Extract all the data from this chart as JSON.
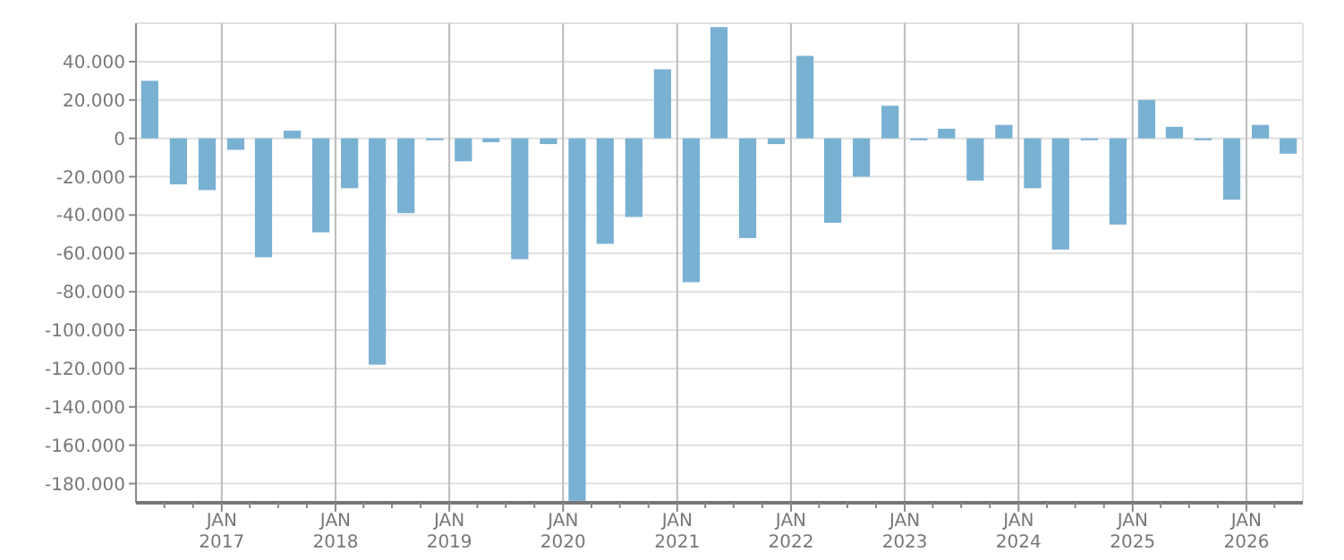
{
  "chart_data": {
    "type": "bar",
    "x": [
      "2016-05-15",
      "2016-08-15",
      "2016-11-15",
      "2017-02-15",
      "2017-05-15",
      "2017-08-15",
      "2017-11-15",
      "2018-02-15",
      "2018-05-15",
      "2018-08-15",
      "2018-11-15",
      "2019-02-15",
      "2019-05-15",
      "2019-08-15",
      "2019-11-15",
      "2020-02-15",
      "2020-05-15",
      "2020-08-15",
      "2020-11-15",
      "2021-02-15",
      "2021-05-15",
      "2021-08-15",
      "2021-11-15",
      "2022-02-15",
      "2022-05-15",
      "2022-08-15",
      "2022-11-15",
      "2023-02-15",
      "2023-05-15",
      "2023-08-15",
      "2023-11-15",
      "2024-02-15",
      "2024-05-15",
      "2024-08-15",
      "2024-11-15",
      "2025-02-15",
      "2025-05-15",
      "2025-08-15",
      "2025-11-15",
      "2026-02-15",
      "2026-05-15"
    ],
    "values": [
      30000,
      -24000,
      -27000,
      -6000,
      -62000,
      4000,
      -49000,
      -26000,
      -118000,
      -39000,
      -1000,
      -12000,
      -2000,
      -63000,
      -3000,
      -189000,
      -55000,
      -41000,
      36000,
      -75000,
      58000,
      -52000,
      -3000,
      43000,
      -44000,
      -20000,
      17000,
      -1000,
      5000,
      -22000,
      7000,
      -26000,
      -58000,
      -1000,
      -45000,
      20000,
      6000,
      -1000,
      -32000,
      7000,
      -8000
    ],
    "color": "#79b1d3",
    "ylim": [
      -190000,
      60000
    ],
    "yticks": [
      {
        "value": -180000,
        "label": "-180.000"
      },
      {
        "value": -160000,
        "label": "-160.000"
      },
      {
        "value": -140000,
        "label": "-140.000"
      },
      {
        "value": -120000,
        "label": "-120.000"
      },
      {
        "value": -100000,
        "label": "-100.000"
      },
      {
        "value": -80000,
        "label": "-80.000"
      },
      {
        "value": -60000,
        "label": "-60.000"
      },
      {
        "value": -40000,
        "label": "-40.000"
      },
      {
        "value": -20000,
        "label": "-20.000"
      },
      0,
      {
        "value": 20000,
        "label": "20.000"
      },
      {
        "value": 40000,
        "label": "40.000"
      }
    ],
    "xlim": [
      "2016-04-01",
      "2026-07-01"
    ],
    "xticks": [
      {
        "value": "2016-07-01",
        "label": null
      },
      {
        "value": "2016-10-01",
        "label": null
      },
      {
        "value": "2017-01-01",
        "label": "JAN 2017"
      },
      {
        "value": "2017-04-01",
        "label": null
      },
      {
        "value": "2017-07-01",
        "label": null
      },
      {
        "value": "2017-10-01",
        "label": null
      },
      {
        "value": "2018-01-01",
        "label": "JAN 2018"
      },
      {
        "value": "2018-04-01",
        "label": null
      },
      {
        "value": "2018-07-01",
        "label": null
      },
      {
        "value": "2018-10-01",
        "label": null
      },
      {
        "value": "2019-01-01",
        "label": "JAN 2019"
      },
      {
        "value": "2019-04-01",
        "label": null
      },
      {
        "value": "2019-07-01",
        "label": null
      },
      {
        "value": "2019-10-01",
        "label": null
      },
      {
        "value": "2020-01-01",
        "label": "JAN 2020"
      },
      {
        "value": "2020-04-01",
        "label": null
      },
      {
        "value": "2020-07-01",
        "label": null
      },
      {
        "value": "2020-10-01",
        "label": null
      },
      {
        "value": "2021-01-01",
        "label": "JAN 2021"
      },
      {
        "value": "2021-04-01",
        "label": null
      },
      {
        "value": "2021-07-01",
        "label": null
      },
      {
        "value": "2021-10-01",
        "label": null
      },
      {
        "value": "2022-01-01",
        "label": "JAN 2022"
      },
      {
        "value": "2022-04-01",
        "label": null
      },
      {
        "value": "2022-07-01",
        "label": null
      },
      {
        "value": "2022-10-01",
        "label": null
      },
      {
        "value": "2023-01-01",
        "label": "JAN 2023"
      },
      {
        "value": "2023-04-01",
        "label": null
      },
      {
        "value": "2023-07-01",
        "label": null
      },
      {
        "value": "2023-10-01",
        "label": null
      },
      {
        "value": "2024-01-01",
        "label": "JAN 2024"
      },
      {
        "value": "2024-04-01",
        "label": null
      },
      {
        "value": "2024-07-01",
        "label": null
      },
      {
        "value": "2024-10-01",
        "label": null
      },
      {
        "value": "2025-01-01",
        "label": "JAN 2025"
      },
      {
        "value": "2025-04-01",
        "label": null
      },
      {
        "value": "2025-07-01",
        "label": null
      },
      {
        "value": "2025-10-01",
        "label": null
      },
      {
        "value": "2026-01-01",
        "label": "JAN 2026"
      },
      {
        "value": "2026-04-01",
        "label": null
      }
    ],
    "grid": true
  }
}
